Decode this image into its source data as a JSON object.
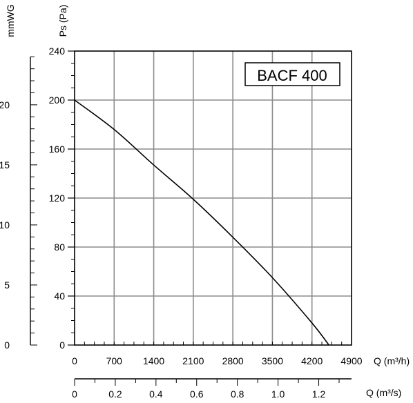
{
  "chart_data": {
    "type": "line",
    "title": "BACF 400",
    "ylabel": "Ps (Pa)",
    "ylabel_secondary": "mmWG",
    "xlabel": "Q (m³/h)",
    "xlabel_secondary": "Q (m³/s)",
    "xlim": [
      0,
      4900
    ],
    "ylim": [
      0,
      240
    ],
    "x_ticks": [
      "0",
      "700",
      "1400",
      "2100",
      "2800",
      "3500",
      "4200",
      "4900"
    ],
    "y_ticks": [
      "0",
      "40",
      "80",
      "120",
      "160",
      "200",
      "240"
    ],
    "secondary_y_ticks": [
      "0",
      "5",
      "10",
      "15",
      "20"
    ],
    "secondary_x_ticks": [
      "0",
      "0.2",
      "0.4",
      "0.6",
      "0.8",
      "1.0",
      "1.2"
    ],
    "grid": true,
    "series": [
      {
        "x": [
          0,
          700,
          1400,
          2100,
          2800,
          3500,
          4200,
          4500
        ],
        "y": [
          200,
          176,
          147,
          119,
          88,
          55,
          18,
          0
        ]
      }
    ]
  }
}
